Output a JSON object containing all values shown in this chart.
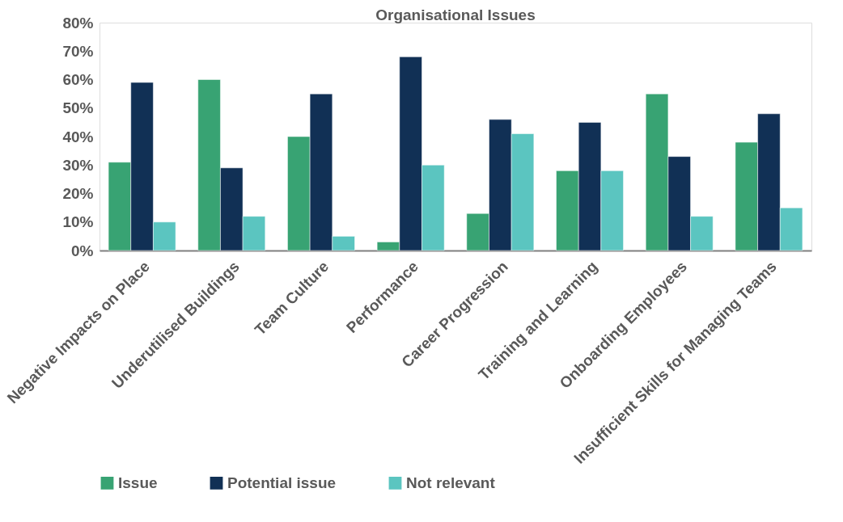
{
  "chart_data": {
    "type": "bar",
    "title": "Organisational Issues",
    "categories": [
      "Negative Impacts on Place",
      "Underutilised Buildings",
      "Team Culture",
      "Performance",
      "Career Progression",
      "Training and Learning",
      "Onboarding Employees",
      "Insufficient Skills for Managing Teams"
    ],
    "series": [
      {
        "name": "Issue",
        "color": "#38a373",
        "values": [
          31,
          60,
          40,
          3,
          13,
          28,
          55,
          38
        ]
      },
      {
        "name": "Potential issue",
        "color": "#113055",
        "values": [
          59,
          29,
          55,
          68,
          46,
          45,
          33,
          48
        ]
      },
      {
        "name": "Not relevant",
        "color": "#5bc5c0",
        "values": [
          10,
          12,
          5,
          30,
          41,
          28,
          12,
          15
        ]
      }
    ],
    "ylim": [
      0,
      80
    ],
    "yticks": [
      {
        "value": 0,
        "label": "0%"
      },
      {
        "value": 10,
        "label": "10%"
      },
      {
        "value": 20,
        "label": "20%"
      },
      {
        "value": 30,
        "label": "30%"
      },
      {
        "value": 40,
        "label": "40%"
      },
      {
        "value": 50,
        "label": "50%"
      },
      {
        "value": 60,
        "label": "60%"
      },
      {
        "value": 70,
        "label": "70%"
      },
      {
        "value": 80,
        "label": "80%"
      }
    ],
    "grid": false,
    "legend": "bottom"
  }
}
